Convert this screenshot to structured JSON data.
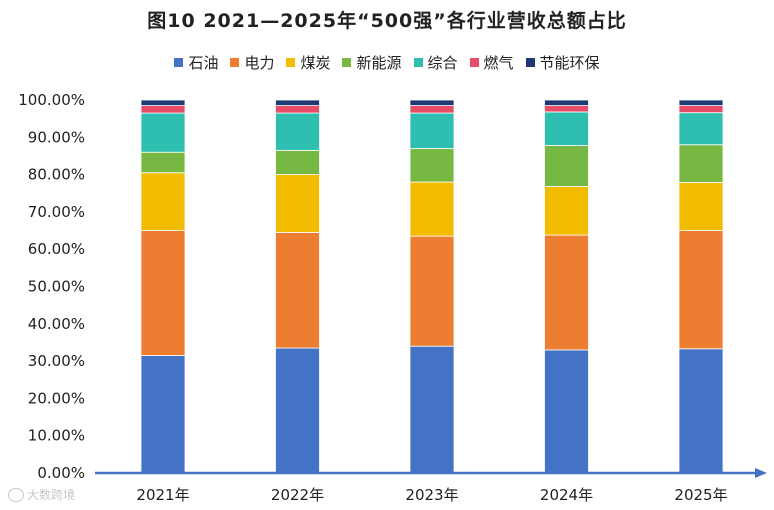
{
  "chart_data": {
    "type": "bar",
    "stacked": true,
    "title": "图10  2021—2025年“500强”各行业营收总额占比",
    "xlabel": "",
    "ylabel": "",
    "categories": [
      "2021年",
      "2022年",
      "2023年",
      "2024年",
      "2025年"
    ],
    "ylim": [
      0,
      100
    ],
    "yticks": [
      "0.00%",
      "10.00%",
      "20.00%",
      "30.00%",
      "40.00%",
      "50.00%",
      "60.00%",
      "70.00%",
      "80.00%",
      "90.00%",
      "100.00%"
    ],
    "legend_position": "top",
    "grid": false,
    "series": [
      {
        "name": "石油",
        "color": "#4472C4",
        "values": [
          31.5,
          33.5,
          34.0,
          33.0,
          33.3
        ]
      },
      {
        "name": "电力",
        "color": "#ED7D31",
        "values": [
          33.5,
          31.0,
          29.5,
          30.8,
          31.7
        ]
      },
      {
        "name": "煤炭",
        "color": "#F2BC00",
        "values": [
          15.5,
          15.5,
          14.5,
          13.0,
          12.9
        ]
      },
      {
        "name": "新能源",
        "color": "#77B843",
        "values": [
          5.5,
          6.5,
          9.0,
          11.0,
          10.1
        ]
      },
      {
        "name": "综合",
        "color": "#2EBFB0",
        "values": [
          10.5,
          10.0,
          9.5,
          9.0,
          8.6
        ]
      },
      {
        "name": "燃气",
        "color": "#E84D68",
        "values": [
          2.0,
          2.0,
          2.0,
          1.7,
          1.9
        ]
      },
      {
        "name": "节能环保",
        "color": "#1F3A73",
        "values": [
          1.5,
          1.5,
          1.5,
          1.5,
          1.5
        ]
      }
    ]
  },
  "watermark": "大数跨境"
}
